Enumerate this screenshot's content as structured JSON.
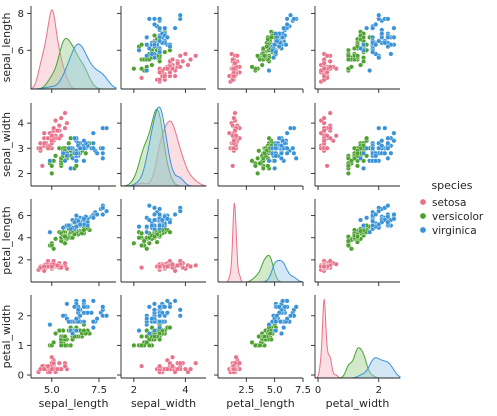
{
  "chart_data": {
    "type": "scatter",
    "variables": [
      "sepal_length",
      "sepal_width",
      "petal_length",
      "petal_width"
    ],
    "diagonal_type": "kde",
    "ranges": {
      "sepal_length": [
        3.9,
        8.4
      ],
      "sepal_width": [
        1.5,
        4.8
      ],
      "petal_length": [
        0,
        7.5
      ],
      "petal_width": [
        -0.1,
        2.7
      ]
    },
    "ticks": {
      "sepal_length": [
        "5.0",
        "7.5"
      ],
      "sepal_width": [
        "2",
        "4"
      ],
      "petal_length": [
        "2.5",
        "5.0",
        "7.5"
      ],
      "petal_width": [
        "0",
        "2"
      ]
    },
    "y_ticks": {
      "sepal_length": [
        "6",
        "8"
      ],
      "sepal_width": [
        "2",
        "3",
        "4"
      ],
      "petal_length": [
        "2",
        "4",
        "6"
      ],
      "petal_width": [
        "0",
        "1",
        "2"
      ]
    },
    "legend": {
      "title": "species",
      "placement": "right"
    },
    "series": [
      {
        "name": "setosa",
        "color": "#e8728a",
        "fill": "#f4b5c2",
        "points": [
          [
            5.1,
            3.5,
            1.4,
            0.2
          ],
          [
            4.9,
            3.0,
            1.4,
            0.2
          ],
          [
            4.7,
            3.2,
            1.3,
            0.2
          ],
          [
            4.6,
            3.1,
            1.5,
            0.2
          ],
          [
            5.0,
            3.6,
            1.4,
            0.2
          ],
          [
            5.4,
            3.9,
            1.7,
            0.4
          ],
          [
            4.6,
            3.4,
            1.4,
            0.3
          ],
          [
            5.0,
            3.4,
            1.5,
            0.2
          ],
          [
            4.4,
            2.9,
            1.4,
            0.2
          ],
          [
            4.9,
            3.1,
            1.5,
            0.1
          ],
          [
            5.4,
            3.7,
            1.5,
            0.2
          ],
          [
            4.8,
            3.4,
            1.6,
            0.2
          ],
          [
            4.8,
            3.0,
            1.4,
            0.1
          ],
          [
            4.3,
            3.0,
            1.1,
            0.1
          ],
          [
            5.8,
            4.0,
            1.2,
            0.2
          ],
          [
            5.7,
            4.4,
            1.5,
            0.4
          ],
          [
            5.4,
            3.9,
            1.3,
            0.4
          ],
          [
            5.1,
            3.5,
            1.4,
            0.3
          ],
          [
            5.7,
            3.8,
            1.7,
            0.3
          ],
          [
            5.1,
            3.8,
            1.5,
            0.3
          ],
          [
            5.4,
            3.4,
            1.7,
            0.2
          ],
          [
            5.1,
            3.7,
            1.5,
            0.4
          ],
          [
            4.6,
            3.6,
            1.0,
            0.2
          ],
          [
            5.1,
            3.3,
            1.7,
            0.5
          ],
          [
            4.8,
            3.4,
            1.9,
            0.2
          ],
          [
            5.0,
            3.0,
            1.6,
            0.2
          ],
          [
            5.0,
            3.4,
            1.6,
            0.4
          ],
          [
            5.2,
            3.5,
            1.5,
            0.2
          ],
          [
            5.2,
            3.4,
            1.4,
            0.2
          ],
          [
            4.7,
            3.2,
            1.6,
            0.2
          ],
          [
            4.8,
            3.1,
            1.6,
            0.2
          ],
          [
            5.4,
            3.4,
            1.5,
            0.4
          ],
          [
            5.2,
            4.1,
            1.5,
            0.1
          ],
          [
            5.5,
            4.2,
            1.4,
            0.2
          ],
          [
            4.9,
            3.1,
            1.5,
            0.2
          ],
          [
            5.0,
            3.2,
            1.2,
            0.2
          ],
          [
            5.5,
            3.5,
            1.3,
            0.2
          ],
          [
            4.9,
            3.6,
            1.4,
            0.1
          ],
          [
            4.4,
            3.0,
            1.3,
            0.2
          ],
          [
            5.1,
            3.4,
            1.5,
            0.2
          ],
          [
            5.0,
            3.5,
            1.3,
            0.3
          ],
          [
            4.5,
            2.3,
            1.3,
            0.3
          ],
          [
            4.4,
            3.2,
            1.3,
            0.2
          ],
          [
            5.0,
            3.5,
            1.6,
            0.6
          ],
          [
            5.1,
            3.8,
            1.9,
            0.4
          ],
          [
            4.8,
            3.0,
            1.4,
            0.3
          ],
          [
            5.1,
            3.8,
            1.6,
            0.2
          ],
          [
            4.6,
            3.2,
            1.4,
            0.2
          ],
          [
            5.3,
            3.7,
            1.5,
            0.2
          ],
          [
            5.0,
            3.3,
            1.4,
            0.2
          ]
        ]
      },
      {
        "name": "versicolor",
        "color": "#4ca12f",
        "fill": "#9cd08c",
        "points": [
          [
            7.0,
            3.2,
            4.7,
            1.4
          ],
          [
            6.4,
            3.2,
            4.5,
            1.5
          ],
          [
            6.9,
            3.1,
            4.9,
            1.5
          ],
          [
            5.5,
            2.3,
            4.0,
            1.3
          ],
          [
            6.5,
            2.8,
            4.6,
            1.5
          ],
          [
            5.7,
            2.8,
            4.5,
            1.3
          ],
          [
            6.3,
            3.3,
            4.7,
            1.6
          ],
          [
            4.9,
            2.4,
            3.3,
            1.0
          ],
          [
            6.6,
            2.9,
            4.6,
            1.3
          ],
          [
            5.2,
            2.7,
            3.9,
            1.4
          ],
          [
            5.0,
            2.0,
            3.5,
            1.0
          ],
          [
            5.9,
            3.0,
            4.2,
            1.5
          ],
          [
            6.0,
            2.2,
            4.0,
            1.0
          ],
          [
            6.1,
            2.9,
            4.7,
            1.4
          ],
          [
            5.6,
            2.9,
            3.6,
            1.3
          ],
          [
            6.7,
            3.1,
            4.4,
            1.4
          ],
          [
            5.6,
            3.0,
            4.5,
            1.5
          ],
          [
            5.8,
            2.7,
            4.1,
            1.0
          ],
          [
            6.2,
            2.2,
            4.5,
            1.5
          ],
          [
            5.6,
            2.5,
            3.9,
            1.1
          ],
          [
            5.9,
            3.2,
            4.8,
            1.8
          ],
          [
            6.1,
            2.8,
            4.0,
            1.3
          ],
          [
            6.3,
            2.5,
            4.9,
            1.5
          ],
          [
            6.1,
            2.8,
            4.7,
            1.2
          ],
          [
            6.4,
            2.9,
            4.3,
            1.3
          ],
          [
            6.6,
            3.0,
            4.4,
            1.4
          ],
          [
            6.8,
            2.8,
            4.8,
            1.4
          ],
          [
            6.7,
            3.0,
            5.0,
            1.7
          ],
          [
            6.0,
            2.9,
            4.5,
            1.5
          ],
          [
            5.7,
            2.6,
            3.5,
            1.0
          ],
          [
            5.5,
            2.4,
            3.8,
            1.1
          ],
          [
            5.5,
            2.4,
            3.7,
            1.0
          ],
          [
            5.8,
            2.7,
            3.9,
            1.2
          ],
          [
            6.0,
            2.7,
            5.1,
            1.6
          ],
          [
            5.4,
            3.0,
            4.5,
            1.5
          ],
          [
            6.0,
            3.4,
            4.5,
            1.6
          ],
          [
            6.7,
            3.1,
            4.7,
            1.5
          ],
          [
            6.3,
            2.3,
            4.4,
            1.3
          ],
          [
            5.6,
            3.0,
            4.1,
            1.3
          ],
          [
            5.5,
            2.5,
            4.0,
            1.3
          ],
          [
            5.5,
            2.6,
            4.4,
            1.2
          ],
          [
            6.1,
            3.0,
            4.6,
            1.4
          ],
          [
            5.8,
            2.6,
            4.0,
            1.2
          ],
          [
            5.0,
            2.3,
            3.3,
            1.0
          ],
          [
            5.6,
            2.7,
            4.2,
            1.3
          ],
          [
            5.7,
            3.0,
            4.2,
            1.2
          ],
          [
            5.7,
            2.9,
            4.2,
            1.3
          ],
          [
            6.2,
            2.9,
            4.3,
            1.3
          ],
          [
            5.1,
            2.5,
            3.0,
            1.1
          ],
          [
            5.7,
            2.8,
            4.1,
            1.3
          ]
        ]
      },
      {
        "name": "virginica",
        "color": "#3a93d6",
        "fill": "#9fc9ec",
        "points": [
          [
            6.3,
            3.3,
            6.0,
            2.5
          ],
          [
            5.8,
            2.7,
            5.1,
            1.9
          ],
          [
            7.1,
            3.0,
            5.9,
            2.1
          ],
          [
            6.3,
            2.9,
            5.6,
            1.8
          ],
          [
            6.5,
            3.0,
            5.8,
            2.2
          ],
          [
            7.6,
            3.0,
            6.6,
            2.1
          ],
          [
            4.9,
            2.5,
            4.5,
            1.7
          ],
          [
            7.3,
            2.9,
            6.3,
            1.8
          ],
          [
            6.7,
            2.5,
            5.8,
            1.8
          ],
          [
            7.2,
            3.6,
            6.1,
            2.5
          ],
          [
            6.5,
            3.2,
            5.1,
            2.0
          ],
          [
            6.4,
            2.7,
            5.3,
            1.9
          ],
          [
            6.8,
            3.0,
            5.5,
            2.1
          ],
          [
            5.7,
            2.5,
            5.0,
            2.0
          ],
          [
            5.8,
            2.8,
            5.1,
            2.4
          ],
          [
            6.4,
            3.2,
            5.3,
            2.3
          ],
          [
            6.5,
            3.0,
            5.5,
            1.8
          ],
          [
            7.7,
            3.8,
            6.7,
            2.2
          ],
          [
            7.7,
            2.6,
            6.9,
            2.3
          ],
          [
            6.0,
            2.2,
            5.0,
            1.5
          ],
          [
            6.9,
            3.2,
            5.7,
            2.3
          ],
          [
            5.6,
            2.8,
            4.9,
            2.0
          ],
          [
            7.7,
            2.8,
            6.7,
            2.0
          ],
          [
            6.3,
            2.7,
            4.9,
            1.8
          ],
          [
            6.7,
            3.3,
            5.7,
            2.1
          ],
          [
            7.2,
            3.2,
            6.0,
            1.8
          ],
          [
            6.2,
            2.8,
            4.8,
            1.8
          ],
          [
            6.1,
            3.0,
            4.9,
            1.8
          ],
          [
            6.4,
            2.8,
            5.6,
            2.1
          ],
          [
            7.2,
            3.0,
            5.8,
            1.6
          ],
          [
            7.4,
            2.8,
            6.1,
            1.9
          ],
          [
            7.9,
            3.8,
            6.4,
            2.0
          ],
          [
            6.4,
            2.8,
            5.6,
            2.2
          ],
          [
            6.3,
            2.8,
            5.1,
            1.5
          ],
          [
            6.1,
            2.6,
            5.6,
            1.4
          ],
          [
            7.7,
            3.0,
            6.1,
            2.3
          ],
          [
            6.3,
            3.4,
            5.6,
            2.4
          ],
          [
            6.4,
            3.1,
            5.5,
            1.8
          ],
          [
            6.0,
            3.0,
            4.8,
            1.8
          ],
          [
            6.9,
            3.1,
            5.4,
            2.1
          ],
          [
            6.7,
            3.1,
            5.6,
            2.4
          ],
          [
            6.9,
            3.1,
            5.1,
            2.3
          ],
          [
            5.8,
            2.7,
            5.1,
            1.9
          ],
          [
            6.8,
            3.2,
            5.9,
            2.3
          ],
          [
            6.7,
            3.3,
            5.7,
            2.5
          ],
          [
            6.7,
            3.0,
            5.2,
            2.3
          ],
          [
            6.3,
            2.5,
            5.0,
            1.9
          ],
          [
            6.5,
            3.0,
            5.2,
            2.0
          ],
          [
            6.2,
            3.4,
            5.4,
            2.3
          ],
          [
            5.9,
            3.0,
            5.1,
            1.8
          ]
        ]
      }
    ]
  }
}
